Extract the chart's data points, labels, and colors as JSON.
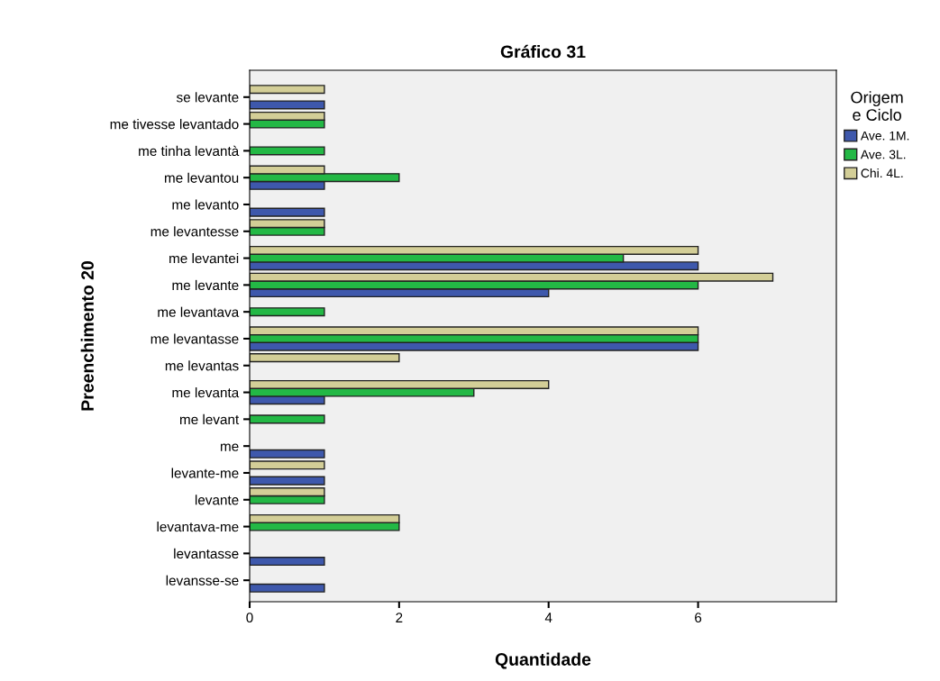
{
  "chart_data": {
    "type": "bar",
    "orientation": "horizontal",
    "title": "Gráfico 31",
    "xlabel": "Quantidade",
    "ylabel": "Preenchimento 20",
    "legend_title": "Origem\ne Ciclo",
    "legend": "right",
    "grid": false,
    "categories": [
      "se levante",
      "me tivesse levantado",
      "me tinha levantà",
      "me levantou",
      "me levanto",
      "me levantesse",
      "me levantei",
      "me levante",
      "me levantava",
      "me levantasse",
      "me levantas",
      "me levanta",
      "me levant",
      "me",
      "levante-me",
      "levante",
      "levantava-me",
      "levantasse",
      "levansse-se"
    ],
    "series": [
      {
        "name": "Ave. 1M.",
        "color": "#3e58ac",
        "values": [
          1,
          null,
          null,
          1,
          1,
          null,
          6,
          4,
          null,
          6,
          null,
          1,
          null,
          1,
          1,
          null,
          null,
          1,
          1
        ]
      },
      {
        "name": "Ave. 3L.",
        "color": "#23b845",
        "values": [
          null,
          1,
          1,
          2,
          null,
          1,
          5,
          6,
          1,
          6,
          null,
          3,
          1,
          null,
          null,
          1,
          2,
          null,
          null
        ]
      },
      {
        "name": "Chi. 4L.",
        "color": "#d3ce97",
        "values": [
          1,
          1,
          null,
          1,
          null,
          1,
          6,
          7,
          null,
          6,
          2,
          4,
          null,
          null,
          1,
          1,
          2,
          null,
          null
        ]
      }
    ],
    "xlim": [
      0,
      7.85
    ],
    "xticks": [
      0,
      2,
      4,
      6
    ]
  }
}
